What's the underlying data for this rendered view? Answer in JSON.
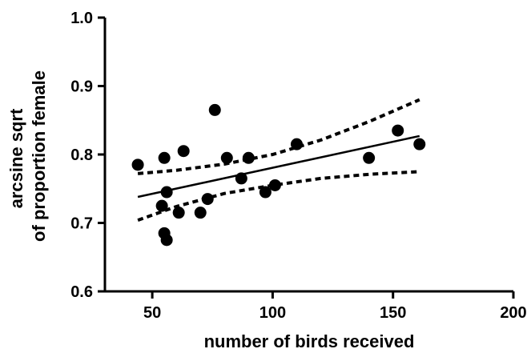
{
  "chart_data": {
    "type": "scatter",
    "xlabel": "number of birds received",
    "ylabel_lines": [
      "arcsine sqrt",
      "of proportion female"
    ],
    "xlim": [
      30,
      200
    ],
    "ylim": [
      0.6,
      1.0
    ],
    "x_ticks": [
      50,
      100,
      150,
      200
    ],
    "y_ticks": [
      0.6,
      0.7,
      0.8,
      0.9,
      1.0
    ],
    "x_tick_labels": [
      "50",
      "100",
      "150",
      "200"
    ],
    "y_tick_labels": [
      "0.6",
      "0.7",
      "0.8",
      "0.9",
      "1.0"
    ],
    "grid": false,
    "legend": "none",
    "points": [
      {
        "x": 44,
        "y": 0.785
      },
      {
        "x": 54,
        "y": 0.725
      },
      {
        "x": 55,
        "y": 0.795
      },
      {
        "x": 55,
        "y": 0.685
      },
      {
        "x": 56,
        "y": 0.675
      },
      {
        "x": 56,
        "y": 0.745
      },
      {
        "x": 61,
        "y": 0.715
      },
      {
        "x": 63,
        "y": 0.805
      },
      {
        "x": 70,
        "y": 0.715
      },
      {
        "x": 73,
        "y": 0.735
      },
      {
        "x": 76,
        "y": 0.865
      },
      {
        "x": 81,
        "y": 0.795
      },
      {
        "x": 87,
        "y": 0.765
      },
      {
        "x": 90,
        "y": 0.795
      },
      {
        "x": 97,
        "y": 0.745
      },
      {
        "x": 101,
        "y": 0.755
      },
      {
        "x": 110,
        "y": 0.815
      },
      {
        "x": 140,
        "y": 0.795
      },
      {
        "x": 152,
        "y": 0.835
      },
      {
        "x": 161,
        "y": 0.815
      }
    ],
    "regression_line": {
      "x": [
        44,
        161
      ],
      "y": [
        0.738,
        0.827
      ]
    },
    "confidence_band_upper": {
      "x": [
        44,
        60,
        80,
        100,
        120,
        140,
        161
      ],
      "y": [
        0.772,
        0.777,
        0.786,
        0.8,
        0.821,
        0.848,
        0.88
      ]
    },
    "confidence_band_lower": {
      "x": [
        44,
        60,
        80,
        100,
        120,
        140,
        161
      ],
      "y": [
        0.704,
        0.724,
        0.743,
        0.755,
        0.765,
        0.771,
        0.775
      ]
    },
    "colors": {
      "points": "#000000",
      "lines": "#000000",
      "background": "#ffffff"
    }
  }
}
